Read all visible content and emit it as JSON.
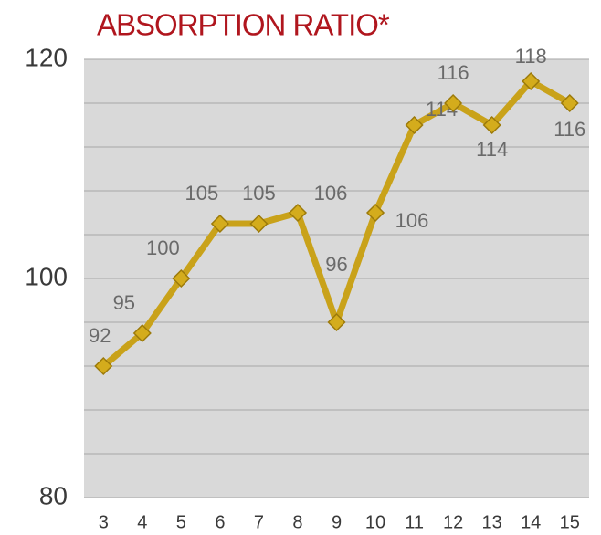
{
  "chart_data": {
    "type": "line",
    "title": "ABSORPTION RATIO*",
    "categories": [
      "3",
      "4",
      "5",
      "6",
      "7",
      "8",
      "9",
      "10",
      "11",
      "12",
      "13",
      "14",
      "15"
    ],
    "values": [
      92,
      95,
      100,
      105,
      105,
      106,
      96,
      106,
      114,
      116,
      114,
      118,
      116
    ],
    "color": "#c9a21a",
    "ylim": [
      80,
      120
    ],
    "yticks": [
      80,
      100,
      120
    ],
    "minor_yticks": [
      84,
      88,
      92,
      96,
      104,
      108,
      112,
      116
    ],
    "grid": true
  }
}
